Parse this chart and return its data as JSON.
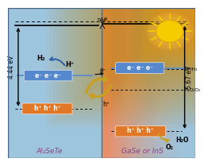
{
  "bg_left_color": "#9ec5de",
  "bg_right_color": "#b8cdd8",
  "sun_gradient_color": "#d4920a",
  "left_label": "Al₂SeTe",
  "right_label": "GaSe or InS",
  "energy_left": "4.44 eV",
  "energy_right": "5.67 eV",
  "delta_phi": "±ΔΦ",
  "h2_label": "H₂",
  "hplus_label": "H⁺",
  "h2o_label": "H₂O",
  "o2_label": "O₂",
  "hplus_h2_label": "H⁺/H₂",
  "h2o_o2_label": "H₂O/O₂",
  "electron_box_color": "#5588cc",
  "hole_box_color": "#e07828",
  "sun_yellow": "#f5c800",
  "sep_color": "#666666",
  "arrow_blue": "#4060a0",
  "arrow_gold": "#c8a020",
  "label_color": "#884488"
}
